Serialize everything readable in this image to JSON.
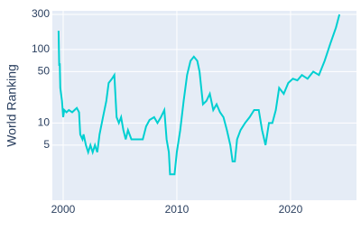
{
  "chart_data": {
    "type": "line",
    "y_label": "World Ranking",
    "y_scale": "log",
    "grid": true,
    "x": [
      1999.6,
      1999.65,
      1999.7,
      1999.75,
      1999.9,
      2000.0,
      2000.1,
      2000.3,
      2000.5,
      2000.8,
      2001.0,
      2001.2,
      2001.4,
      2001.5,
      2001.7,
      2001.8,
      2002.0,
      2002.2,
      2002.4,
      2002.6,
      2002.8,
      2003.0,
      2003.2,
      2003.5,
      2003.8,
      2004.0,
      2004.3,
      2004.5,
      2004.7,
      2004.9,
      2005.1,
      2005.3,
      2005.5,
      2005.7,
      2006.0,
      2006.5,
      2007.0,
      2007.3,
      2007.6,
      2008.0,
      2008.3,
      2008.6,
      2008.9,
      2009.1,
      2009.3,
      2009.4,
      2009.8,
      2010.0,
      2010.3,
      2010.6,
      2010.9,
      2011.2,
      2011.5,
      2011.8,
      2012.0,
      2012.3,
      2012.6,
      2012.9,
      2013.2,
      2013.5,
      2013.8,
      2014.1,
      2014.4,
      2014.7,
      2014.9,
      2015.1,
      2015.3,
      2015.6,
      2016.0,
      2016.4,
      2016.8,
      2017.2,
      2017.5,
      2017.8,
      2018.1,
      2018.4,
      2018.7,
      2019.0,
      2019.4,
      2019.8,
      2020.2,
      2020.6,
      2021.0,
      2021.5,
      2022.0,
      2022.5,
      2023.0,
      2023.5,
      2024.0,
      2024.3
    ],
    "series": [
      {
        "color": "#00cfd1",
        "values": [
          180,
          60,
          65,
          30,
          20,
          12,
          15,
          14,
          15,
          14,
          15,
          16,
          14,
          7,
          6,
          7,
          5,
          4,
          5,
          4,
          5,
          4,
          7,
          12,
          20,
          35,
          40,
          45,
          12,
          10,
          12,
          8,
          6,
          8,
          6,
          6,
          6,
          9,
          11,
          12,
          10,
          12,
          15,
          6,
          4,
          2,
          2,
          4,
          8,
          20,
          45,
          70,
          80,
          70,
          50,
          18,
          20,
          25,
          15,
          18,
          14,
          12,
          8,
          5,
          3,
          3,
          6,
          8,
          10,
          12,
          15,
          15,
          8,
          5,
          10,
          10,
          15,
          30,
          25,
          35,
          40,
          38,
          45,
          40,
          50,
          45,
          70,
          120,
          200,
          300
        ]
      }
    ],
    "xlim": [
      1999.05,
      2025.8
    ],
    "ylim": [
      0.89,
      336
    ],
    "xticks": [
      2000,
      2010,
      2020
    ],
    "yticks": [
      5,
      10,
      50,
      100,
      300
    ]
  }
}
